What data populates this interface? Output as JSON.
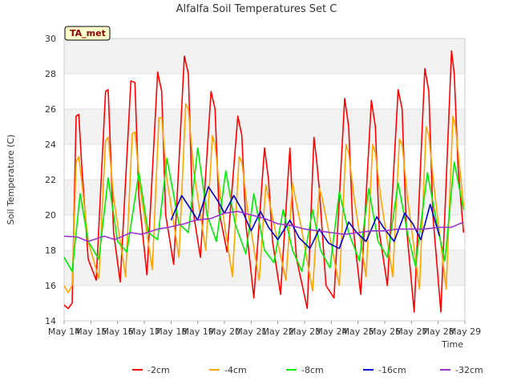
{
  "chart_data": {
    "type": "line",
    "title": "Alfalfa Soil Temperatures Set C",
    "xlabel": "Time",
    "ylabel": "Soil Temperature (C)",
    "badge": "TA_met",
    "ylim": [
      14,
      30
    ],
    "yticks": [
      "14",
      "16",
      "18",
      "20",
      "22",
      "24",
      "26",
      "28",
      "30"
    ],
    "xlim": [
      0,
      15
    ],
    "xticks": [
      "May 14",
      "May 15",
      "May 16",
      "May 17",
      "May 18",
      "May 19",
      "May 20",
      "May 21",
      "May 22",
      "May 23",
      "May 24",
      "May 25",
      "May 26",
      "May 27",
      "May 28",
      "May 29"
    ],
    "legend_position": "bottom",
    "grid": true,
    "series": [
      {
        "name": "-2cm",
        "color": "#ff0000",
        "x": [
          0,
          0.15,
          0.3,
          0.45,
          0.55,
          0.65,
          0.9,
          1.2,
          1.55,
          1.65,
          1.85,
          2.1,
          2.5,
          2.65,
          2.8,
          3.1,
          3.5,
          3.65,
          3.8,
          4.1,
          4.5,
          4.65,
          4.8,
          5.1,
          5.5,
          5.65,
          5.8,
          6.1,
          6.5,
          6.65,
          6.8,
          7.1,
          7.5,
          7.65,
          7.8,
          8.1,
          8.45,
          8.55,
          8.7,
          9.1,
          9.35,
          9.45,
          9.55,
          9.8,
          10.1,
          10.5,
          10.65,
          10.8,
          11.1,
          11.5,
          11.65,
          11.8,
          12.1,
          12.5,
          12.65,
          12.8,
          13.1,
          13.5,
          13.65,
          13.8,
          14.1,
          14.5,
          14.6,
          14.75,
          14.95
        ],
        "values": [
          14.9,
          14.7,
          15.0,
          25.6,
          25.7,
          23.0,
          17.5,
          16.3,
          27.0,
          27.1,
          19.0,
          16.2,
          27.6,
          27.5,
          21.0,
          16.6,
          28.1,
          27.0,
          20.0,
          17.2,
          29.0,
          28.0,
          20.5,
          17.6,
          27.0,
          26.0,
          20.2,
          17.9,
          25.6,
          24.5,
          19.5,
          15.3,
          23.8,
          22.0,
          18.5,
          15.5,
          23.8,
          20.5,
          17.5,
          14.7,
          24.4,
          23.1,
          21.5,
          16.0,
          15.3,
          26.6,
          25.0,
          19.5,
          15.5,
          26.5,
          25.0,
          19.0,
          16.0,
          27.1,
          26.0,
          19.5,
          14.5,
          28.3,
          27.0,
          20.0,
          14.5,
          29.3,
          28.0,
          22.5,
          19.0
        ]
      },
      {
        "name": "-4cm",
        "color": "#ffa500",
        "x": [
          0,
          0.15,
          0.3,
          0.45,
          0.55,
          0.65,
          0.9,
          1.3,
          1.55,
          1.65,
          1.85,
          2.3,
          2.55,
          2.65,
          2.85,
          3.3,
          3.55,
          3.65,
          3.85,
          4.3,
          4.55,
          4.65,
          4.85,
          5.3,
          5.55,
          5.65,
          5.85,
          6.3,
          6.55,
          6.65,
          6.85,
          7.3,
          7.55,
          7.65,
          7.85,
          8.3,
          8.55,
          8.65,
          8.85,
          9.3,
          9.55,
          9.65,
          9.85,
          10.3,
          10.55,
          10.65,
          10.85,
          11.3,
          11.55,
          11.65,
          11.85,
          12.3,
          12.55,
          12.65,
          12.85,
          13.3,
          13.55,
          13.65,
          13.85,
          14.3,
          14.55,
          14.65,
          14.85,
          14.95
        ],
        "values": [
          16.0,
          15.6,
          16.0,
          23.0,
          23.3,
          22.0,
          18.5,
          16.4,
          24.2,
          24.4,
          21.0,
          16.5,
          24.6,
          24.7,
          21.5,
          16.9,
          25.5,
          25.5,
          22.0,
          17.6,
          26.3,
          26.0,
          22.5,
          18.0,
          24.5,
          24.0,
          21.0,
          16.5,
          23.3,
          23.0,
          20.5,
          16.3,
          21.7,
          21.0,
          19.5,
          16.3,
          21.8,
          21.0,
          19.5,
          15.7,
          21.5,
          21.0,
          19.5,
          16.0,
          24.0,
          23.5,
          21.0,
          16.5,
          24.0,
          23.5,
          21.0,
          16.5,
          24.3,
          24.0,
          21.0,
          15.8,
          25.0,
          24.5,
          21.5,
          15.8,
          25.6,
          25.0,
          22.0,
          20.5
        ]
      },
      {
        "name": "-8cm",
        "color": "#00ee00",
        "x": [
          0,
          0.3,
          0.6,
          0.9,
          1.3,
          1.65,
          2.0,
          2.35,
          2.8,
          3.15,
          3.5,
          3.85,
          4.3,
          4.65,
          5.0,
          5.35,
          5.7,
          6.05,
          6.4,
          6.8,
          7.1,
          7.5,
          7.85,
          8.2,
          8.55,
          8.9,
          9.3,
          9.6,
          9.95,
          10.3,
          10.65,
          11.05,
          11.4,
          11.75,
          12.1,
          12.5,
          12.85,
          13.15,
          13.6,
          13.95,
          14.25,
          14.6,
          14.95
        ],
        "values": [
          17.6,
          16.8,
          21.2,
          18.5,
          17.5,
          22.1,
          18.5,
          17.9,
          22.4,
          19.0,
          18.6,
          23.2,
          19.5,
          19.0,
          23.8,
          20.0,
          18.5,
          22.5,
          19.5,
          17.8,
          21.2,
          18.0,
          17.3,
          20.3,
          18.0,
          16.8,
          20.3,
          18.0,
          17.0,
          21.3,
          19.0,
          17.4,
          21.5,
          18.5,
          17.6,
          21.8,
          19.0,
          17.1,
          22.4,
          19.5,
          17.4,
          23.0,
          20.3
        ]
      },
      {
        "name": "-16cm",
        "color": "#0000cc",
        "x": [
          4.0,
          4.4,
          4.75,
          5.0,
          5.4,
          5.75,
          6.0,
          6.35,
          6.65,
          7.0,
          7.35,
          7.65,
          8.0,
          8.45,
          8.8,
          9.2,
          9.55,
          9.9,
          10.3,
          10.65,
          10.95,
          11.3,
          11.7,
          11.95,
          12.35,
          12.75,
          13.05,
          13.35,
          13.7,
          14.05
        ],
        "values": [
          19.7,
          21.1,
          20.3,
          19.7,
          21.6,
          20.8,
          20.1,
          21.1,
          20.3,
          19.1,
          20.2,
          19.3,
          18.6,
          19.7,
          18.7,
          18.1,
          19.2,
          18.4,
          18.1,
          19.6,
          19.0,
          18.5,
          19.9,
          19.3,
          18.5,
          20.1,
          19.5,
          18.6,
          20.6,
          18.8
        ]
      },
      {
        "name": "-32cm",
        "color": "#9933cc",
        "x": [
          0,
          0.5,
          0.9,
          1.5,
          1.9,
          2.5,
          2.9,
          3.5,
          3.9,
          4.5,
          4.9,
          5.5,
          6.0,
          6.5,
          7.0,
          7.5,
          8.0,
          8.5,
          9.0,
          9.5,
          10.0,
          10.5,
          11.0,
          11.5,
          12.0,
          12.5,
          13.0,
          13.5,
          14.0,
          14.5,
          14.95
        ],
        "values": [
          18.8,
          18.75,
          18.5,
          18.8,
          18.6,
          19.0,
          18.9,
          19.2,
          19.3,
          19.5,
          19.7,
          19.8,
          20.1,
          20.2,
          20.0,
          19.8,
          19.5,
          19.4,
          19.2,
          19.1,
          19.0,
          18.9,
          19.0,
          19.1,
          19.1,
          19.2,
          19.2,
          19.2,
          19.3,
          19.3,
          19.6
        ]
      }
    ]
  }
}
